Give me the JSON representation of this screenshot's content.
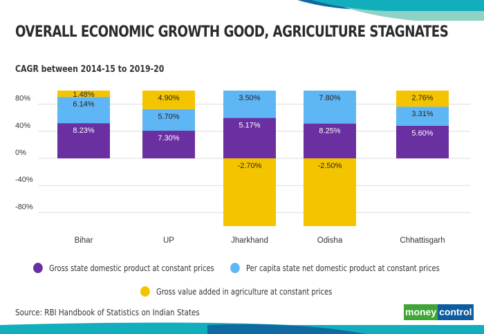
{
  "header": {
    "title": "OVERALL ECONOMIC GROWTH GOOD, AGRICULTURE STAGNATES",
    "subtitle": "CAGR between 2014-15 to 2019-20"
  },
  "footer": {
    "source": "Source: RBI Handbook of Statistics on Indian States",
    "logo_part1": "money",
    "logo_part2": "control"
  },
  "colors": {
    "purple": "#6a2fa0",
    "blue": "#5fb6f5",
    "yellow": "#f5c400",
    "logo_green": "#3fa535",
    "logo_blue": "#0d5c9e"
  },
  "chart_data": {
    "type": "bar",
    "stacked": "percent",
    "categories": [
      "Bihar",
      "UP",
      "Jharkhand",
      "Odisha",
      "Chhattisgarh"
    ],
    "series": [
      {
        "name": "Gross state domestic product at constant prices",
        "color": "#6a2fa0",
        "values": [
          8.23,
          7.3,
          5.17,
          8.25,
          5.6
        ],
        "labels": [
          "8.23%",
          "7.30%",
          "5.17%",
          "8.25%",
          "5.60%"
        ]
      },
      {
        "name": "Per capita state net domestic product at constant prices",
        "color": "#5fb6f5",
        "values": [
          6.14,
          5.7,
          3.5,
          7.8,
          3.31
        ],
        "labels": [
          "6.14%",
          "5.70%",
          "3.50%",
          "7.80%",
          "3.31%"
        ]
      },
      {
        "name": "Gross value added in agriculture at constant prices",
        "color": "#f5c400",
        "values": [
          1.48,
          4.9,
          -2.7,
          -2.5,
          2.76
        ],
        "labels": [
          "1.48%",
          "4.90%",
          "-2.70%",
          "-2.50%",
          "2.76%"
        ]
      }
    ],
    "yticks": [
      "80%",
      "40%",
      "0%",
      "-40%",
      "-80%"
    ],
    "ytick_values": [
      80,
      40,
      0,
      -40,
      -80
    ],
    "ylim": [
      -100,
      100
    ],
    "grid": true,
    "legend": "bottom"
  }
}
